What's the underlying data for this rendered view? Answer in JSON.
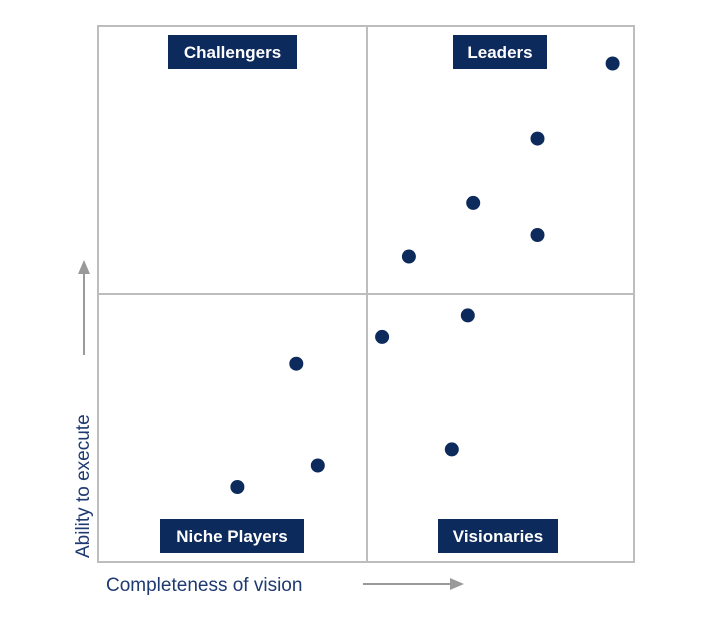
{
  "chart_data": {
    "type": "scatter",
    "title": "",
    "xlabel": "Completeness of vision",
    "ylabel": "Ability to execute",
    "xlim": [
      0,
      1
    ],
    "ylim": [
      0,
      1
    ],
    "grid": false,
    "quadrants": {
      "top_left": "Challengers",
      "top_right": "Leaders",
      "bottom_left": "Niche Players",
      "bottom_right": "Visionaries"
    },
    "points": [
      {
        "x": 0.96,
        "y": 0.93
      },
      {
        "x": 0.82,
        "y": 0.79
      },
      {
        "x": 0.7,
        "y": 0.67
      },
      {
        "x": 0.82,
        "y": 0.61
      },
      {
        "x": 0.58,
        "y": 0.57
      },
      {
        "x": 0.69,
        "y": 0.46
      },
      {
        "x": 0.53,
        "y": 0.42
      },
      {
        "x": 0.37,
        "y": 0.37
      },
      {
        "x": 0.66,
        "y": 0.21
      },
      {
        "x": 0.41,
        "y": 0.18
      },
      {
        "x": 0.26,
        "y": 0.14
      }
    ],
    "colors": {
      "points": "#0d2a5c",
      "labels_bg": "#0d2a5c",
      "frame": "#bdbdbd",
      "arrows": "#9a9a9a"
    }
  }
}
